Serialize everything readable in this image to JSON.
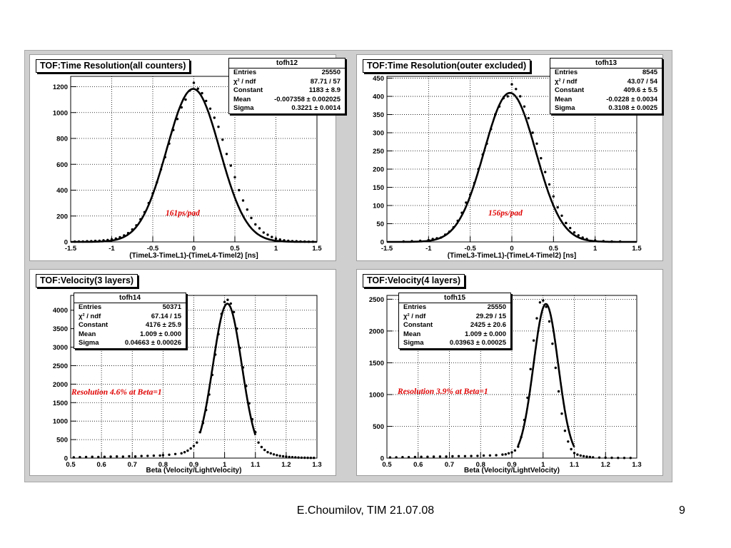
{
  "footer": {
    "text": "E.Choumilov, TIM 21.07.08",
    "page_number": "9"
  },
  "chart_data": [
    {
      "type": "scatter",
      "title": "TOF:Time Resolution(all counters)",
      "xlabel": "(TimeL3-TimeL1)-(TimeL4-Timel2) [ns]",
      "xlim": [
        -1.5,
        1.5
      ],
      "ylim": [
        0,
        1280
      ],
      "xticks": [
        -1.5,
        -1,
        -0.5,
        0,
        0.5,
        1,
        1.5
      ],
      "xtick_labels": [
        "-1.5",
        "-1",
        "-0.5",
        "0",
        "0.5",
        "1",
        "1.5"
      ],
      "yticks": [
        0,
        200,
        400,
        600,
        800,
        1000,
        1200
      ],
      "ytick_labels": [
        "0",
        "200",
        "400",
        "600",
        "800",
        "1000",
        "1200"
      ],
      "grid": true,
      "annotation": "161ps/pad",
      "stats": {
        "name": "tofh12",
        "rows": [
          {
            "label": "Entries",
            "value": "25550"
          },
          {
            "label": "χ² / ndf",
            "value": "87.71 / 57"
          },
          {
            "label": "Constant",
            "value": "1183 ± 8.9"
          },
          {
            "label": "Mean",
            "value": "-0.007358 ± 0.002025"
          },
          {
            "label": "Sigma",
            "value": "0.3221 ± 0.0014"
          }
        ]
      },
      "fit": {
        "model": "gaus",
        "constant": 1183,
        "mean": -0.007358,
        "sigma": 0.3221,
        "range": [
          -1.5,
          1.5
        ]
      },
      "series": [
        {
          "x": [
            -1.45,
            -1.4,
            -1.35,
            -1.3,
            -1.25,
            -1.2,
            -1.15,
            -1.1,
            -1.05,
            -1,
            -0.95,
            -0.9,
            -0.85,
            -0.8,
            -0.75,
            -0.7,
            -0.65,
            -0.6,
            -0.55,
            -0.5,
            -0.45,
            -0.4,
            -0.35,
            -0.3,
            -0.25,
            -0.2,
            -0.15,
            -0.1,
            -0.05,
            0,
            0.05,
            0.1,
            0.15,
            0.2,
            0.25,
            0.3,
            0.35,
            0.4,
            0.45,
            0.5,
            0.55,
            0.6,
            0.65,
            0.7,
            0.75,
            0.8,
            0.85,
            0.9,
            0.95,
            1,
            1.05,
            1.1,
            1.15,
            1.2,
            1.25,
            1.3,
            1.35,
            1.4,
            1.45
          ],
          "y": [
            2,
            3,
            3,
            5,
            6,
            8,
            9,
            12,
            15,
            20,
            26,
            36,
            50,
            68,
            96,
            128,
            175,
            230,
            300,
            375,
            460,
            560,
            655,
            760,
            865,
            950,
            1040,
            1100,
            1170,
            1230,
            1185,
            1150,
            1090,
            1030,
            960,
            890,
            790,
            680,
            590,
            500,
            400,
            320,
            250,
            185,
            135,
            105,
            72,
            55,
            38,
            25,
            18,
            12,
            9,
            6,
            5,
            3,
            2,
            1,
            1
          ]
        }
      ]
    },
    {
      "type": "scatter",
      "title": "TOF:Time Resolution(outer excluded)",
      "xlabel": "(TimeL3-TimeL1)-(TimeL4-Timel2) [ns]",
      "xlim": [
        -1.5,
        1.5
      ],
      "ylim": [
        0,
        455
      ],
      "xticks": [
        -1.5,
        -1,
        -0.5,
        0,
        0.5,
        1,
        1.5
      ],
      "xtick_labels": [
        "-1.5",
        "-1",
        "-0.5",
        "0",
        "0.5",
        "1",
        "1.5"
      ],
      "yticks": [
        0,
        50,
        100,
        150,
        200,
        250,
        300,
        350,
        400,
        450
      ],
      "ytick_labels": [
        "0",
        "50",
        "100",
        "150",
        "200",
        "250",
        "300",
        "350",
        "400",
        "450"
      ],
      "grid": true,
      "annotation": "156ps/pad",
      "stats": {
        "name": "tofh13",
        "rows": [
          {
            "label": "Entries",
            "value": "8545"
          },
          {
            "label": "χ² / ndf",
            "value": "43.07 / 54"
          },
          {
            "label": "Constant",
            "value": "409.6 ± 5.5"
          },
          {
            "label": "Mean",
            "value": "-0.0228 ± 0.0034"
          },
          {
            "label": "Sigma",
            "value": "0.3108 ± 0.0025"
          }
        ]
      },
      "fit": {
        "model": "gaus",
        "constant": 409.6,
        "mean": -0.0228,
        "sigma": 0.3108,
        "range": [
          -1.5,
          1.5
        ]
      },
      "series": [
        {
          "x": [
            -1.3,
            -1.2,
            -1.1,
            -1,
            -0.95,
            -0.9,
            -0.85,
            -0.8,
            -0.75,
            -0.7,
            -0.65,
            -0.6,
            -0.55,
            -0.5,
            -0.45,
            -0.4,
            -0.35,
            -0.3,
            -0.25,
            -0.2,
            -0.15,
            -0.1,
            -0.05,
            0,
            0.05,
            0.1,
            0.15,
            0.2,
            0.25,
            0.3,
            0.35,
            0.4,
            0.45,
            0.5,
            0.55,
            0.6,
            0.65,
            0.7,
            0.75,
            0.8,
            0.85,
            0.9,
            1,
            1.1,
            1.2,
            1.3
          ],
          "y": [
            1,
            2,
            3,
            5,
            8,
            10,
            12,
            20,
            28,
            40,
            58,
            80,
            108,
            130,
            162,
            200,
            240,
            270,
            310,
            350,
            372,
            395,
            400,
            433,
            420,
            400,
            372,
            340,
            300,
            270,
            230,
            192,
            158,
            125,
            95,
            72,
            52,
            38,
            26,
            18,
            12,
            8,
            4,
            2,
            1,
            1
          ]
        }
      ]
    },
    {
      "type": "scatter",
      "title": "TOF:Velocity(3 layers)",
      "xlabel": "Beta (Velocity/LightVelocity)",
      "xlim": [
        0.5,
        1.3
      ],
      "ylim": [
        0,
        4400
      ],
      "xticks": [
        0.5,
        0.6,
        0.7,
        0.8,
        0.9,
        1,
        1.1,
        1.2,
        1.3
      ],
      "xtick_labels": [
        "0.5",
        "0.6",
        "0.7",
        "0.8",
        "0.9",
        "1",
        "1.1",
        "1.2",
        "1.3"
      ],
      "yticks": [
        0,
        500,
        1000,
        1500,
        2000,
        2500,
        3000,
        3500,
        4000
      ],
      "ytick_labels": [
        "0",
        "500",
        "1000",
        "1500",
        "2000",
        "2500",
        "3000",
        "3500",
        "4000"
      ],
      "grid": true,
      "annotation": "Resolution 4.6% at Beta=1",
      "stats": {
        "name": "tofh14",
        "rows": [
          {
            "label": "Entries",
            "value": "50371"
          },
          {
            "label": "χ² / ndf",
            "value": "67.14 / 15"
          },
          {
            "label": "Constant",
            "value": "4176 ± 25.9"
          },
          {
            "label": "Mean",
            "value": "1.009 ± 0.000"
          },
          {
            "label": "Sigma",
            "value": "0.04663 ± 0.00026"
          }
        ]
      },
      "fit": {
        "model": "gaus",
        "constant": 4176,
        "mean": 1.009,
        "sigma": 0.04663,
        "range": [
          0.92,
          1.1
        ]
      },
      "series": [
        {
          "x": [
            0.51,
            0.53,
            0.55,
            0.57,
            0.59,
            0.61,
            0.63,
            0.65,
            0.67,
            0.69,
            0.71,
            0.73,
            0.75,
            0.77,
            0.79,
            0.8,
            0.82,
            0.84,
            0.86,
            0.87,
            0.88,
            0.89,
            0.9,
            0.91,
            0.92,
            0.93,
            0.94,
            0.95,
            0.96,
            0.97,
            0.98,
            0.99,
            1,
            1.01,
            1.02,
            1.03,
            1.04,
            1.05,
            1.06,
            1.07,
            1.08,
            1.09,
            1.1,
            1.11,
            1.12,
            1.13,
            1.14,
            1.15,
            1.16,
            1.17,
            1.18,
            1.19,
            1.2,
            1.21,
            1.22,
            1.23,
            1.24,
            1.25,
            1.26,
            1.27,
            1.28,
            1.29
          ],
          "y": [
            20,
            25,
            30,
            35,
            30,
            35,
            40,
            45,
            40,
            50,
            45,
            55,
            60,
            65,
            70,
            80,
            90,
            110,
            130,
            160,
            200,
            260,
            330,
            420,
            700,
            950,
            1300,
            1720,
            2250,
            2800,
            3350,
            3900,
            4220,
            4280,
            4180,
            3950,
            3500,
            2980,
            2450,
            1950,
            1480,
            1050,
            700,
            420,
            300,
            220,
            160,
            130,
            100,
            80,
            60,
            50,
            40,
            30,
            25,
            20,
            15,
            12,
            10,
            8,
            5,
            5
          ]
        }
      ]
    },
    {
      "type": "scatter",
      "title": "TOF:Velocity(4 layers)",
      "xlabel": "Beta (Velocity/LightVelocity)",
      "xlim": [
        0.5,
        1.3
      ],
      "ylim": [
        0,
        2560
      ],
      "xticks": [
        0.5,
        0.6,
        0.7,
        0.8,
        0.9,
        1,
        1.1,
        1.2,
        1.3
      ],
      "xtick_labels": [
        "0.5",
        "0.6",
        "0.7",
        "0.8",
        "0.9",
        "1",
        "1.1",
        "1.2",
        "1.3"
      ],
      "yticks": [
        0,
        500,
        1000,
        1500,
        2000,
        2500
      ],
      "ytick_labels": [
        "0",
        "500",
        "1000",
        "1500",
        "2000",
        "2500"
      ],
      "grid": true,
      "annotation": "Resolution 3.9% at Beta=1",
      "stats": {
        "name": "tofh15",
        "rows": [
          {
            "label": "Entries",
            "value": "25550"
          },
          {
            "label": "χ² / ndf",
            "value": "29.29 / 15"
          },
          {
            "label": "Constant",
            "value": "2425 ± 20.6"
          },
          {
            "label": "Mean",
            "value": "1.009 ± 0.000"
          },
          {
            "label": "Sigma",
            "value": "0.03963 ± 0.00025"
          }
        ]
      },
      "fit": {
        "model": "gaus",
        "constant": 2425,
        "mean": 1.009,
        "sigma": 0.03963,
        "range": [
          0.92,
          1.1
        ]
      },
      "series": [
        {
          "x": [
            0.51,
            0.53,
            0.55,
            0.57,
            0.59,
            0.61,
            0.63,
            0.65,
            0.67,
            0.69,
            0.71,
            0.73,
            0.75,
            0.77,
            0.79,
            0.81,
            0.83,
            0.85,
            0.87,
            0.88,
            0.89,
            0.9,
            0.91,
            0.92,
            0.93,
            0.94,
            0.95,
            0.96,
            0.97,
            0.98,
            0.99,
            1,
            1.01,
            1.02,
            1.03,
            1.04,
            1.05,
            1.06,
            1.07,
            1.08,
            1.09,
            1.1,
            1.11,
            1.12,
            1.13,
            1.14,
            1.15,
            1.16,
            1.18,
            1.2,
            1.22,
            1.24,
            1.26,
            1.28
          ],
          "y": [
            10,
            12,
            15,
            15,
            18,
            20,
            20,
            22,
            25,
            25,
            28,
            30,
            30,
            32,
            35,
            40,
            42,
            45,
            55,
            60,
            75,
            90,
            120,
            180,
            330,
            600,
            950,
            1400,
            1850,
            2200,
            2450,
            2480,
            2380,
            2150,
            1800,
            1420,
            1050,
            700,
            430,
            260,
            140,
            80,
            55,
            40,
            30,
            22,
            18,
            12,
            8,
            6,
            5,
            3,
            2,
            2
          ]
        }
      ]
    }
  ]
}
